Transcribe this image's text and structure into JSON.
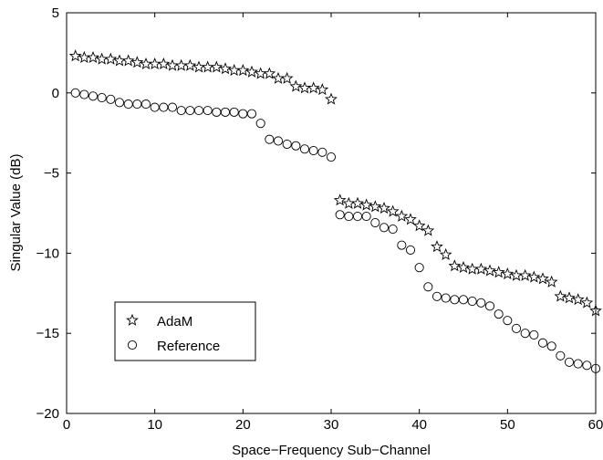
{
  "chart_data": {
    "type": "scatter",
    "title": "",
    "xlabel": "Space−Frequency Sub−Channel",
    "ylabel": "Singular Value (dB)",
    "xlim": [
      0,
      60
    ],
    "ylim": [
      -20,
      5
    ],
    "xticks": [
      0,
      10,
      20,
      30,
      40,
      50,
      60
    ],
    "yticks": [
      5,
      0,
      -5,
      -10,
      -15,
      -20
    ],
    "xtick_labels": [
      "0",
      "10",
      "20",
      "30",
      "40",
      "50",
      "60"
    ],
    "ytick_labels": [
      "5",
      "0",
      "−5",
      "−10",
      "−15",
      "−20"
    ],
    "grid": false,
    "legend_position": "lower-left",
    "x": [
      1,
      2,
      3,
      4,
      5,
      6,
      7,
      8,
      9,
      10,
      11,
      12,
      13,
      14,
      15,
      16,
      17,
      18,
      19,
      20,
      21,
      22,
      23,
      24,
      25,
      26,
      27,
      28,
      29,
      30,
      31,
      32,
      33,
      34,
      35,
      36,
      37,
      38,
      39,
      40,
      41,
      42,
      43,
      44,
      45,
      46,
      47,
      48,
      49,
      50,
      51,
      52,
      53,
      54,
      55,
      56,
      57,
      58,
      59,
      60
    ],
    "series": [
      {
        "name": "AdaM",
        "marker": "star",
        "values": [
          2.3,
          2.2,
          2.2,
          2.1,
          2.1,
          2.0,
          2.0,
          1.9,
          1.8,
          1.8,
          1.8,
          1.7,
          1.7,
          1.7,
          1.6,
          1.6,
          1.6,
          1.5,
          1.4,
          1.4,
          1.3,
          1.2,
          1.2,
          0.9,
          0.9,
          0.4,
          0.3,
          0.3,
          0.2,
          -0.4,
          -6.7,
          -6.9,
          -6.9,
          -7.0,
          -7.1,
          -7.2,
          -7.4,
          -7.7,
          -7.9,
          -8.3,
          -8.6,
          -9.6,
          -10.1,
          -10.8,
          -10.9,
          -11.0,
          -11.0,
          -11.1,
          -11.2,
          -11.3,
          -11.4,
          -11.4,
          -11.5,
          -11.6,
          -11.8,
          -12.7,
          -12.8,
          -12.9,
          -13.1,
          -13.6
        ]
      },
      {
        "name": "Reference",
        "marker": "circle",
        "values": [
          0.0,
          -0.1,
          -0.2,
          -0.3,
          -0.4,
          -0.6,
          -0.7,
          -0.7,
          -0.7,
          -0.9,
          -0.9,
          -0.9,
          -1.1,
          -1.1,
          -1.1,
          -1.1,
          -1.2,
          -1.2,
          -1.2,
          -1.3,
          -1.3,
          -1.9,
          -2.9,
          -3.0,
          -3.2,
          -3.3,
          -3.5,
          -3.6,
          -3.7,
          -4.0,
          -7.6,
          -7.7,
          -7.7,
          -7.7,
          -8.1,
          -8.4,
          -8.5,
          -9.5,
          -9.8,
          -10.9,
          -12.1,
          -12.7,
          -12.8,
          -12.9,
          -12.9,
          -13.0,
          -13.1,
          -13.3,
          -13.8,
          -14.2,
          -14.7,
          -15.0,
          -15.1,
          -15.6,
          -15.8,
          -16.4,
          -16.8,
          -16.9,
          -17.0,
          -17.2
        ]
      }
    ]
  }
}
